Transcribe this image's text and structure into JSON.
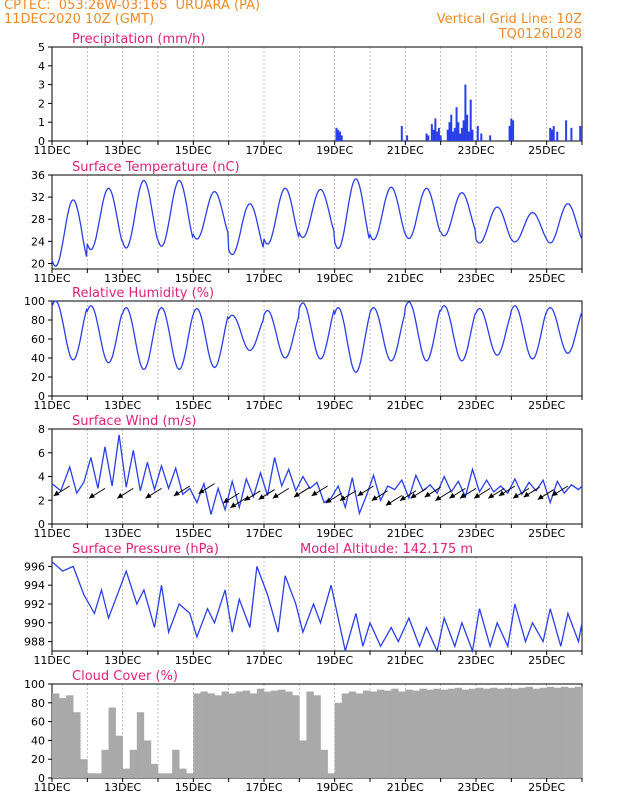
{
  "header": {
    "station_line": "CPTEC:  053:26W-03:16S  URUARA (PA)",
    "date_line": "11DEC2020 10Z (GMT)",
    "grid_line": "Vertical Grid Line: 10Z",
    "code": "TQ0126L028"
  },
  "colors": {
    "header": "#f08a24",
    "title": "#e0207a",
    "series": "#2a3fe8",
    "cloud": "#a9a9a9",
    "grid": "#9a9a9a"
  },
  "chart_data": [
    {
      "id": "precip",
      "type": "bar",
      "title": "Precipitation (mm/h)",
      "ylim": [
        0,
        5
      ],
      "yticks": [
        0,
        1,
        2,
        3,
        4,
        5
      ],
      "xlim": [
        0,
        15
      ],
      "xticks": [
        0,
        2,
        4,
        6,
        8,
        10,
        12,
        14
      ],
      "xtick_labels": [
        "11DEC",
        "13DEC",
        "15DEC",
        "17DEC",
        "19DEC",
        "21DEC",
        "23DEC",
        "25DEC"
      ],
      "x": [
        8.05,
        8.1,
        8.15,
        8.2,
        9.9,
        10.05,
        10.6,
        10.65,
        10.75,
        10.8,
        10.85,
        10.9,
        10.95,
        11.0,
        11.2,
        11.25,
        11.3,
        11.35,
        11.4,
        11.45,
        11.5,
        11.55,
        11.6,
        11.65,
        11.7,
        11.75,
        11.8,
        11.85,
        11.9,
        12.05,
        12.15,
        12.4,
        12.95,
        13.0,
        13.05,
        14.1,
        14.15,
        14.2,
        14.3,
        14.55,
        14.7,
        14.95
      ],
      "values": [
        0.7,
        0.6,
        0.5,
        0.3,
        0.8,
        0.3,
        0.4,
        0.3,
        0.9,
        0.6,
        1.2,
        0.5,
        0.7,
        0.3,
        0.6,
        1.0,
        1.4,
        0.5,
        0.7,
        1.8,
        1.0,
        0.4,
        0.7,
        1.1,
        3.0,
        1.4,
        0.5,
        2.2,
        0.6,
        0.8,
        0.4,
        0.3,
        0.8,
        1.2,
        1.1,
        0.7,
        0.6,
        0.8,
        0.5,
        1.1,
        0.7,
        0.8
      ]
    },
    {
      "id": "temp",
      "type": "line",
      "title": "Surface Temperature (nC)",
      "ylim": [
        19,
        36
      ],
      "yticks": [
        20,
        24,
        28,
        32,
        36
      ],
      "xlim": [
        0,
        15
      ],
      "xticks": [
        0,
        2,
        4,
        6,
        8,
        10,
        12,
        14
      ],
      "xtick_labels": [
        "11DEC",
        "13DEC",
        "15DEC",
        "17DEC",
        "19DEC",
        "21DEC",
        "23DEC",
        "25DEC"
      ],
      "period": 1,
      "phase": 0.6,
      "max": [
        31.5,
        33.6,
        35.0,
        35.0,
        33.0,
        30.8,
        33.6,
        33.4,
        35.3,
        33.8,
        33.6,
        32.8,
        30.2,
        29.2,
        30.8
      ],
      "min": [
        19.5,
        22.5,
        22.8,
        23.1,
        24.4,
        21.6,
        23.5,
        24.7,
        22.7,
        24.3,
        24.5,
        25.0,
        23.7,
        23.9,
        23.7
      ]
    },
    {
      "id": "rh",
      "type": "line",
      "title": "Relative Humidity (%)",
      "ylim": [
        0,
        100
      ],
      "yticks": [
        0,
        20,
        40,
        60,
        80,
        100
      ],
      "xlim": [
        0,
        15
      ],
      "xticks": [
        0,
        2,
        4,
        6,
        8,
        10,
        12,
        14
      ],
      "xtick_labels": [
        "11DEC",
        "13DEC",
        "15DEC",
        "17DEC",
        "19DEC",
        "21DEC",
        "23DEC",
        "25DEC"
      ],
      "period": 1,
      "phase": 0.1,
      "max": [
        100,
        95,
        93,
        93,
        92,
        85,
        90,
        98,
        93,
        93,
        99,
        95,
        92,
        95,
        93
      ],
      "min": [
        38,
        35,
        28,
        28,
        30,
        48,
        40,
        39,
        25,
        37,
        37,
        37,
        43,
        39,
        45
      ]
    },
    {
      "id": "wind",
      "type": "line",
      "title": "Surface Wind (m/s)",
      "ylim": [
        0,
        8
      ],
      "yticks": [
        0,
        2,
        4,
        6,
        8
      ],
      "xlim": [
        0,
        15
      ],
      "xticks": [
        0,
        2,
        4,
        6,
        8,
        10,
        12,
        14
      ],
      "xtick_labels": [
        "11DEC",
        "13DEC",
        "15DEC",
        "17DEC",
        "19DEC",
        "21DEC",
        "23DEC",
        "25DEC"
      ],
      "x": [
        0,
        0.25,
        0.5,
        0.7,
        0.9,
        1.1,
        1.3,
        1.5,
        1.7,
        1.9,
        2.1,
        2.3,
        2.5,
        2.7,
        2.9,
        3.1,
        3.3,
        3.5,
        3.7,
        3.9,
        4.1,
        4.3,
        4.5,
        4.7,
        4.9,
        5.1,
        5.3,
        5.5,
        5.7,
        5.9,
        6.1,
        6.3,
        6.5,
        6.7,
        6.9,
        7.1,
        7.3,
        7.5,
        7.7,
        7.9,
        8.1,
        8.3,
        8.5,
        8.7,
        8.9,
        9.1,
        9.3,
        9.5,
        9.7,
        9.9,
        10.1,
        10.3,
        10.5,
        10.7,
        10.9,
        11.1,
        11.3,
        11.5,
        11.7,
        11.9,
        12.1,
        12.3,
        12.5,
        12.7,
        12.9,
        13.1,
        13.3,
        13.5,
        13.7,
        13.9,
        14.1,
        14.3,
        14.5,
        14.7,
        14.9,
        15.0
      ],
      "values": [
        3.4,
        2.8,
        4.8,
        2.6,
        3.5,
        5.6,
        3.0,
        6.5,
        3.2,
        7.5,
        3.1,
        6.2,
        2.8,
        5.2,
        2.9,
        4.9,
        3.0,
        4.7,
        2.5,
        3.0,
        1.8,
        3.4,
        0.8,
        3.0,
        1.2,
        3.6,
        1.4,
        3.8,
        2.3,
        4.3,
        2.4,
        5.6,
        3.2,
        4.6,
        2.8,
        4.0,
        3.0,
        3.5,
        1.8,
        2.2,
        3.2,
        1.4,
        3.9,
        0.9,
        2.4,
        4.1,
        2.0,
        3.2,
        2.9,
        3.7,
        2.2,
        4.1,
        2.8,
        3.3,
        2.6,
        4.0,
        2.7,
        3.6,
        2.3,
        4.6,
        2.7,
        3.7,
        2.7,
        3.2,
        2.6,
        3.8,
        2.5,
        3.5,
        2.8,
        3.7,
        1.8,
        3.6,
        2.6,
        3.3,
        2.9,
        3.2
      ],
      "arrows_x": [
        0.5,
        1.5,
        2.3,
        3.1,
        3.9,
        4.6,
        5.3,
        5.5,
        5.9,
        6.3,
        6.7,
        7.3,
        7.8,
        8.2,
        8.6,
        9.1,
        9.5,
        9.9,
        10.3,
        10.6,
        11.0,
        11.3,
        11.7,
        12.0,
        12.4,
        12.8,
        13.1,
        13.5,
        13.8,
        14.2,
        14.6
      ],
      "arrows_y": [
        3.2,
        3.0,
        3.0,
        3.0,
        3.2,
        3.4,
        2.6,
        2.2,
        2.8,
        2.9,
        3.0,
        3.1,
        3.2,
        2.6,
        2.8,
        3.2,
        2.8,
        2.4,
        2.8,
        3.0,
        3.1,
        2.8,
        3.0,
        3.0,
        3.0,
        3.0,
        3.2,
        3.0,
        3.1,
        2.9,
        3.2
      ]
    },
    {
      "id": "pressure",
      "type": "line",
      "title": "Surface Pressure (hPa)",
      "annotation": "Model Altitude: 142.175 m",
      "ylim": [
        987,
        997
      ],
      "yticks": [
        988,
        990,
        992,
        994,
        996
      ],
      "xlim": [
        0,
        15
      ],
      "xticks": [
        0,
        2,
        4,
        6,
        8,
        10,
        12,
        14
      ],
      "xtick_labels": [
        "11DEC",
        "13DEC",
        "15DEC",
        "17DEC",
        "19DEC",
        "21DEC",
        "23DEC",
        "25DEC"
      ],
      "x": [
        0,
        0.3,
        0.6,
        0.9,
        1.2,
        1.4,
        1.6,
        1.8,
        2.1,
        2.4,
        2.6,
        2.9,
        3.1,
        3.3,
        3.6,
        3.9,
        4.1,
        4.4,
        4.6,
        4.9,
        5.1,
        5.3,
        5.6,
        5.8,
        6.1,
        6.4,
        6.6,
        6.9,
        7.1,
        7.4,
        7.6,
        7.9,
        8.1,
        8.3,
        8.6,
        8.8,
        9.0,
        9.3,
        9.6,
        9.8,
        10.1,
        10.4,
        10.6,
        10.9,
        11.1,
        11.4,
        11.6,
        11.9,
        12.1,
        12.4,
        12.6,
        12.9,
        13.1,
        13.4,
        13.6,
        13.9,
        14.1,
        14.4,
        14.6,
        14.9,
        15.0
      ],
      "values": [
        996.5,
        995.5,
        996.0,
        993.0,
        991.0,
        993.5,
        990.5,
        992.5,
        995.5,
        992.0,
        993.5,
        989.5,
        994.0,
        989.0,
        992.0,
        991.0,
        988.5,
        991.5,
        990.0,
        993.5,
        989.0,
        992.5,
        989.5,
        996.0,
        993.0,
        989.0,
        995.0,
        992.0,
        989.0,
        992.0,
        990.0,
        994.0,
        990.5,
        987.0,
        991.0,
        987.5,
        990.0,
        987.5,
        989.5,
        988.0,
        990.5,
        987.5,
        989.5,
        987.0,
        990.5,
        987.5,
        990.0,
        987.0,
        991.5,
        987.5,
        990.0,
        987.5,
        992.0,
        988.0,
        990.0,
        988.0,
        991.5,
        987.5,
        991.0,
        988.0,
        990.0
      ]
    },
    {
      "id": "cloud",
      "type": "bar",
      "title": "Cloud Cover (%)",
      "ylim": [
        0,
        100
      ],
      "yticks": [
        0,
        20,
        40,
        60,
        80,
        100
      ],
      "xlim": [
        0,
        15
      ],
      "xticks": [
        0,
        2,
        4,
        6,
        8,
        10,
        12,
        14
      ],
      "xtick_labels": [
        "11DEC",
        "13DEC",
        "15DEC",
        "17DEC",
        "19DEC",
        "21DEC",
        "23DEC",
        "25DEC"
      ],
      "x": [
        0,
        0.2,
        0.4,
        0.6,
        0.8,
        1.0,
        1.2,
        1.4,
        1.6,
        1.8,
        2.0,
        2.2,
        2.4,
        2.6,
        2.8,
        3.0,
        3.2,
        3.4,
        3.6,
        3.8,
        4.0,
        4.2,
        4.4,
        4.6,
        4.8,
        5.0,
        5.2,
        5.4,
        5.6,
        5.8,
        6.0,
        6.2,
        6.4,
        6.6,
        6.8,
        7.0,
        7.2,
        7.4,
        7.6,
        7.8,
        8.0,
        8.2,
        8.4,
        8.6,
        8.8,
        9.0,
        9.2,
        9.4,
        9.6,
        9.8,
        10.0,
        10.2,
        10.4,
        10.6,
        10.8,
        11.0,
        11.2,
        11.4,
        11.6,
        11.8,
        12.0,
        12.2,
        12.4,
        12.6,
        12.8,
        13.0,
        13.2,
        13.4,
        13.6,
        13.8,
        14.0,
        14.2,
        14.4,
        14.6,
        14.8
      ],
      "values": [
        90,
        85,
        88,
        70,
        20,
        5,
        5,
        30,
        75,
        45,
        10,
        30,
        70,
        40,
        15,
        5,
        5,
        30,
        10,
        5,
        90,
        92,
        90,
        88,
        92,
        90,
        92,
        93,
        90,
        95,
        92,
        93,
        94,
        92,
        88,
        40,
        92,
        88,
        30,
        5,
        80,
        90,
        92,
        90,
        93,
        92,
        94,
        93,
        95,
        92,
        94,
        93,
        95,
        94,
        95,
        94,
        95,
        96,
        94,
        95,
        96,
        95,
        96,
        95,
        96,
        95,
        96,
        97,
        95,
        96,
        97,
        96,
        97,
        96,
        97
      ]
    }
  ]
}
